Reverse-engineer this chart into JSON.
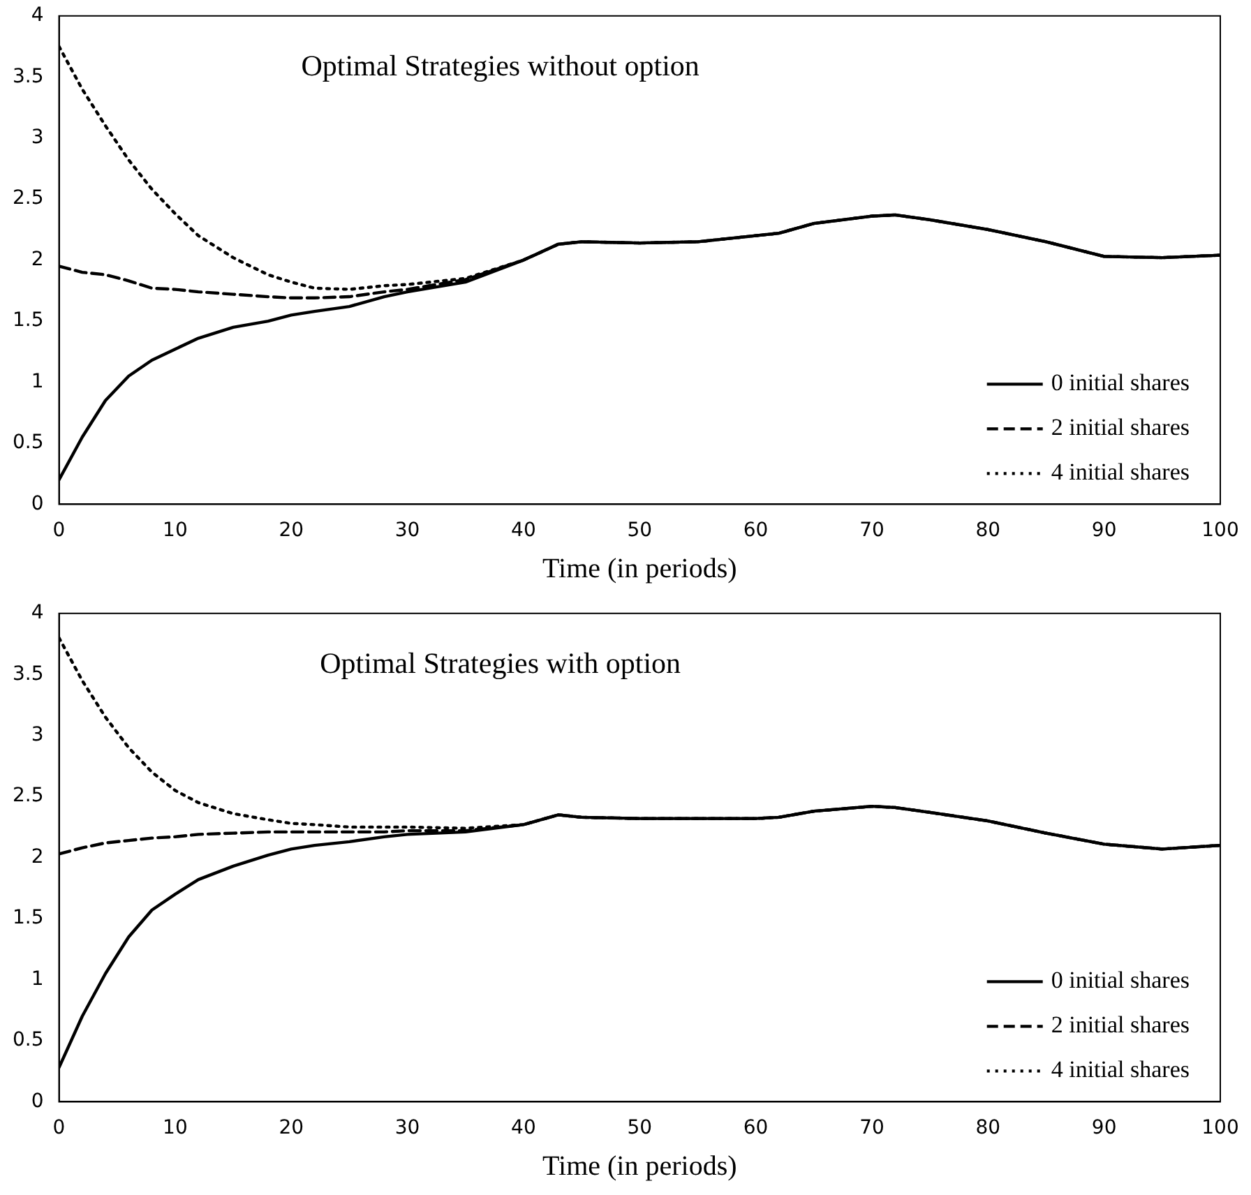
{
  "chart_data": [
    {
      "type": "line",
      "title": "Optimal Strategies without option",
      "xlabel": "Time (in periods)",
      "xlim": [
        0,
        100
      ],
      "xticks": [
        0,
        10,
        20,
        30,
        40,
        50,
        60,
        70,
        80,
        90,
        100
      ],
      "ylim": [
        0,
        4
      ],
      "yticks": [
        0,
        0.5,
        1,
        1.5,
        2,
        2.5,
        3,
        3.5,
        4
      ],
      "grid": false,
      "legend": "bottom right",
      "marker": "none",
      "x": [
        0,
        2,
        4,
        6,
        8,
        10,
        12,
        15,
        18,
        20,
        22,
        25,
        28,
        30,
        35,
        40,
        43,
        45,
        50,
        55,
        60,
        62,
        65,
        70,
        72,
        75,
        80,
        85,
        90,
        95,
        100
      ],
      "series": [
        {
          "name": "0 initial shares",
          "color": "#000000",
          "line_style": "solid",
          "values": [
            0.2,
            0.55,
            0.85,
            1.05,
            1.18,
            1.27,
            1.36,
            1.45,
            1.5,
            1.55,
            1.58,
            1.62,
            1.7,
            1.74,
            1.82,
            2.0,
            2.13,
            2.15,
            2.14,
            2.15,
            2.2,
            2.22,
            2.3,
            2.36,
            2.37,
            2.33,
            2.25,
            2.15,
            2.03,
            2.02,
            2.04
          ]
        },
        {
          "name": "2 initial shares",
          "color": "#000000",
          "line_style": "dashed",
          "values": [
            1.95,
            1.9,
            1.88,
            1.83,
            1.77,
            1.76,
            1.74,
            1.72,
            1.7,
            1.69,
            1.69,
            1.7,
            1.74,
            1.76,
            1.84,
            2.0,
            2.13,
            2.15,
            2.14,
            2.15,
            2.2,
            2.22,
            2.3,
            2.36,
            2.37,
            2.33,
            2.25,
            2.15,
            2.03,
            2.02,
            2.04
          ]
        },
        {
          "name": "4 initial shares",
          "color": "#000000",
          "line_style": "dotted",
          "values": [
            3.75,
            3.4,
            3.1,
            2.82,
            2.58,
            2.38,
            2.2,
            2.02,
            1.88,
            1.82,
            1.77,
            1.76,
            1.79,
            1.8,
            1.85,
            2.0,
            2.13,
            2.15,
            2.14,
            2.15,
            2.2,
            2.22,
            2.3,
            2.36,
            2.37,
            2.33,
            2.25,
            2.15,
            2.03,
            2.02,
            2.04
          ]
        }
      ]
    },
    {
      "type": "line",
      "title": "Optimal Strategies with option",
      "xlabel": "Time (in periods)",
      "xlim": [
        0,
        100
      ],
      "xticks": [
        0,
        10,
        20,
        30,
        40,
        50,
        60,
        70,
        80,
        90,
        100
      ],
      "ylim": [
        0,
        4
      ],
      "yticks": [
        0,
        0.5,
        1,
        1.5,
        2,
        2.5,
        3,
        3.5,
        4
      ],
      "grid": false,
      "legend": "bottom right",
      "marker": "none",
      "x": [
        0,
        2,
        4,
        6,
        8,
        10,
        12,
        15,
        18,
        20,
        22,
        25,
        28,
        30,
        35,
        40,
        43,
        45,
        50,
        55,
        60,
        62,
        65,
        70,
        72,
        75,
        80,
        85,
        90,
        95,
        100
      ],
      "series": [
        {
          "name": "0 initial shares",
          "color": "#000000",
          "line_style": "solid",
          "values": [
            0.28,
            0.7,
            1.05,
            1.35,
            1.57,
            1.7,
            1.82,
            1.93,
            2.02,
            2.07,
            2.1,
            2.13,
            2.17,
            2.19,
            2.21,
            2.27,
            2.35,
            2.33,
            2.32,
            2.32,
            2.32,
            2.33,
            2.38,
            2.42,
            2.41,
            2.37,
            2.3,
            2.2,
            2.11,
            2.07,
            2.1
          ]
        },
        {
          "name": "2 initial shares",
          "color": "#000000",
          "line_style": "dashed",
          "values": [
            2.03,
            2.08,
            2.12,
            2.14,
            2.16,
            2.17,
            2.19,
            2.2,
            2.21,
            2.21,
            2.21,
            2.21,
            2.21,
            2.22,
            2.22,
            2.27,
            2.35,
            2.33,
            2.32,
            2.32,
            2.32,
            2.33,
            2.38,
            2.42,
            2.41,
            2.37,
            2.3,
            2.2,
            2.11,
            2.07,
            2.1
          ]
        },
        {
          "name": "4 initial shares",
          "color": "#000000",
          "line_style": "dotted",
          "values": [
            3.8,
            3.45,
            3.15,
            2.9,
            2.7,
            2.55,
            2.45,
            2.36,
            2.31,
            2.28,
            2.27,
            2.25,
            2.25,
            2.25,
            2.24,
            2.27,
            2.35,
            2.33,
            2.32,
            2.32,
            2.32,
            2.33,
            2.38,
            2.42,
            2.41,
            2.37,
            2.3,
            2.2,
            2.11,
            2.07,
            2.1
          ]
        }
      ]
    }
  ]
}
